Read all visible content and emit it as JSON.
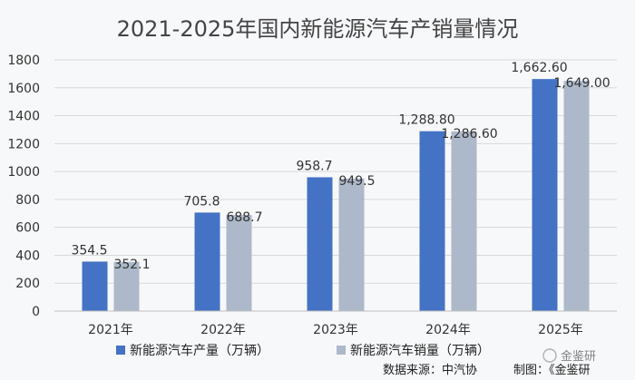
{
  "chart_data": {
    "type": "bar",
    "title": "2021-2025年国内新能源汽车产销量情况",
    "categories": [
      "2021年",
      "2022年",
      "2023年",
      "2024年",
      "2025年"
    ],
    "series": [
      {
        "name": "新能源汽车产量（万辆）",
        "values": [
          354.5,
          705.8,
          958.7,
          1288.8,
          1662.6
        ],
        "labels": [
          "354.5",
          "705.8",
          "958.7",
          "1,288.80",
          "1,662.60"
        ],
        "color": "#4472c4"
      },
      {
        "name": "新能源汽车销量（万辆）",
        "values": [
          352.1,
          688.7,
          949.5,
          1286.6,
          1649.0
        ],
        "labels": [
          "352.1",
          "688.7",
          "949.5",
          "1,286.60",
          "1,649.00"
        ],
        "color": "#adb9ca"
      }
    ],
    "y_ticks": [
      "0",
      "200",
      "400",
      "600",
      "800",
      "1000",
      "1200",
      "1400",
      "1600",
      "1800"
    ],
    "ylim": [
      0,
      1800
    ],
    "grid": true,
    "legend": "bottom-center",
    "source": "数据来源：中汽协",
    "credit": "制图：《金鉴研",
    "watermark": "金鉴研"
  }
}
